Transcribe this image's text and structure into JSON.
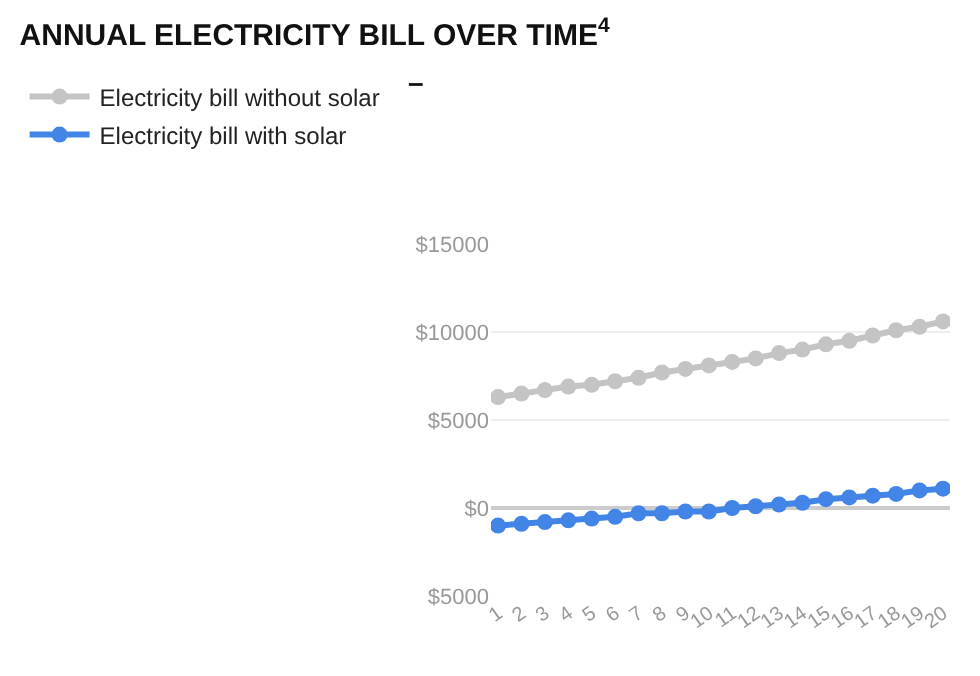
{
  "chart_data": {
    "type": "line",
    "title": "ANNUAL ELECTRICITY BILL OVER TIME$^{4}$",
    "annotations": [
      "–"
    ],
    "categories": [
      "1",
      "2",
      "3",
      "4",
      "5",
      "6",
      "7",
      "8",
      "9",
      "10",
      "11",
      "12",
      "13",
      "14",
      "15",
      "16",
      "17",
      "18",
      "19",
      "20"
    ],
    "series": [
      {
        "name": "Electricity bill without solar",
        "color": "#c4c4c4",
        "values": [
          6300,
          6500,
          6700,
          6900,
          7000,
          7200,
          7400,
          7700,
          7900,
          8100,
          8300,
          8500,
          8800,
          9000,
          9300,
          9500,
          9800,
          10100,
          10300,
          10600
        ]
      },
      {
        "name": "Electricity bill with solar",
        "color": "#4285e6",
        "values": [
          -1000,
          -900,
          -800,
          -700,
          -600,
          -500,
          -300,
          -300,
          -200,
          -200,
          0,
          100,
          200,
          300,
          500,
          600,
          700,
          800,
          1000,
          1100
        ]
      }
    ],
    "ylim": [
      -5000,
      15000
    ],
    "yticks": [
      {
        "value": -5000,
        "label": "$5000"
      },
      {
        "value": 0,
        "label": "$0"
      },
      {
        "value": 5000,
        "label": "$5000"
      },
      {
        "value": 10000,
        "label": "$10000"
      },
      {
        "value": 15000,
        "label": "$15000"
      }
    ],
    "grid": "y",
    "legend": "top left",
    "marker": "circle",
    "line_style": "solid"
  }
}
